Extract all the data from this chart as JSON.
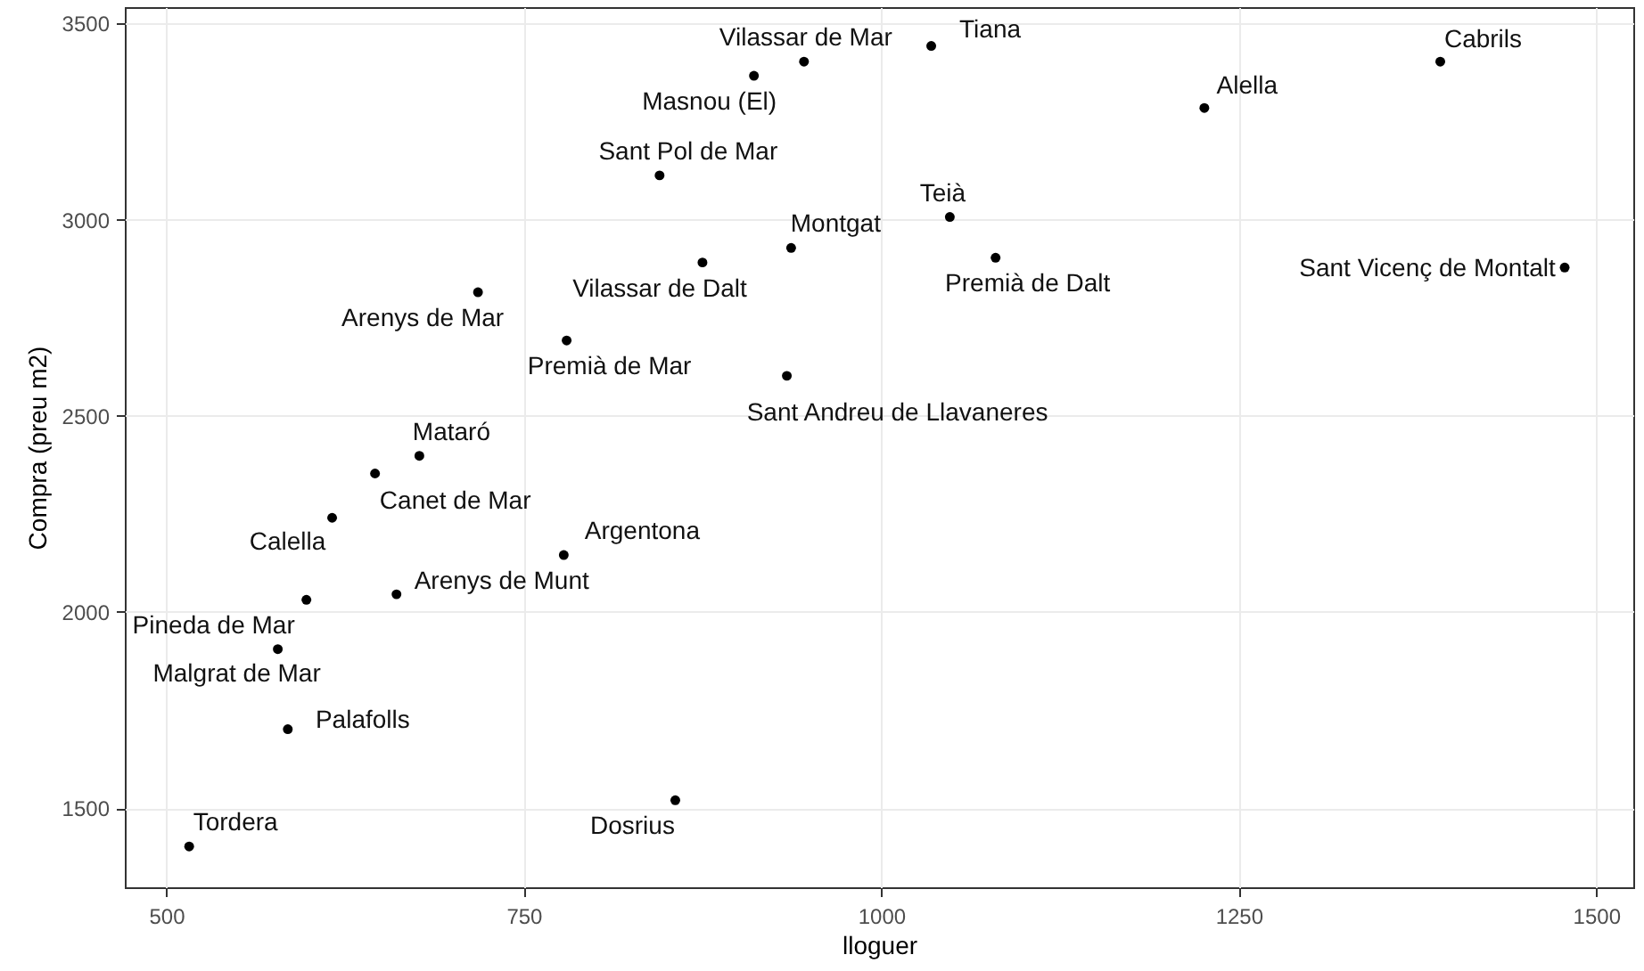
{
  "chart_data": {
    "type": "scatter",
    "xlabel": "lloguer",
    "ylabel": "Compra (preu m2)",
    "color": "#000000",
    "marker": "circle",
    "grid": true,
    "xlim": [
      471,
      1526
    ],
    "ylim": [
      1298,
      3542
    ],
    "xticks": [
      500,
      750,
      1000,
      1250,
      1500
    ],
    "yticks": [
      1500,
      2000,
      2500,
      3000,
      3500
    ],
    "x": [
      516,
      585,
      578,
      598,
      661,
      778,
      616,
      646,
      677,
      856,
      780,
      718,
      875,
      934,
      937,
      845,
      911,
      946,
      1035,
      1048,
      1080,
      1226,
      1391,
      1478
    ],
    "values": [
      1402,
      1701,
      1905,
      2031,
      2045,
      2145,
      2240,
      2353,
      2398,
      1520,
      2692,
      2815,
      2891,
      2602,
      2928,
      3113,
      3367,
      3403,
      3443,
      3007,
      2903,
      3285,
      3403,
      2878
    ],
    "annotations": [
      {
        "text": "Tordera",
        "x": 516,
        "y": 1402
      },
      {
        "text": "Palafolls",
        "x": 585,
        "y": 1701
      },
      {
        "text": "Malgrat de Mar",
        "x": 578,
        "y": 1905
      },
      {
        "text": "Pineda de Mar",
        "x": 598,
        "y": 2031
      },
      {
        "text": "Arenys de Munt",
        "x": 661,
        "y": 2045
      },
      {
        "text": "Argentona",
        "x": 778,
        "y": 2145
      },
      {
        "text": "Calella",
        "x": 616,
        "y": 2240
      },
      {
        "text": "Canet de Mar",
        "x": 646,
        "y": 2353
      },
      {
        "text": "Mataró",
        "x": 677,
        "y": 2398
      },
      {
        "text": "Dosrius",
        "x": 856,
        "y": 1520
      },
      {
        "text": "Premià de Mar",
        "x": 780,
        "y": 2692
      },
      {
        "text": "Arenys de Mar",
        "x": 718,
        "y": 2815
      },
      {
        "text": "Vilassar de Dalt",
        "x": 875,
        "y": 2891
      },
      {
        "text": "Sant Andreu de Llavaneres",
        "x": 934,
        "y": 2602
      },
      {
        "text": "Montgat",
        "x": 937,
        "y": 2928
      },
      {
        "text": "Sant Pol de Mar",
        "x": 845,
        "y": 3113
      },
      {
        "text": "Masnou (El)",
        "x": 911,
        "y": 3367
      },
      {
        "text": "Vilassar de Mar",
        "x": 946,
        "y": 3403
      },
      {
        "text": "Tiana",
        "x": 1035,
        "y": 3443
      },
      {
        "text": "Teià",
        "x": 1048,
        "y": 3007
      },
      {
        "text": "Premià de Dalt",
        "x": 1080,
        "y": 2903
      },
      {
        "text": "Alella",
        "x": 1226,
        "y": 3285
      },
      {
        "text": "Cabrils",
        "x": 1391,
        "y": 3403
      },
      {
        "text": "Sant Vicenç de Montalt",
        "x": 1478,
        "y": 2878
      }
    ]
  }
}
